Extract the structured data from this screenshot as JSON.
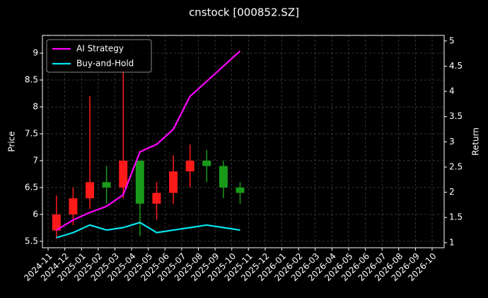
{
  "chart_data": {
    "type": "candlestick_with_returns",
    "title": "cnstock [000852.SZ]",
    "y_label": "Price",
    "y2_label": "Return",
    "x": [
      "2024-11",
      "2024-12",
      "2025-01",
      "2025-02",
      "2025-03",
      "2025-04",
      "2025-05",
      "2025-06",
      "2025-07",
      "2025-08",
      "2025-09",
      "2025-10"
    ],
    "open": [
      5.7,
      6.0,
      6.3,
      6.6,
      6.5,
      7.0,
      6.2,
      6.4,
      6.8,
      7.0,
      6.9,
      6.5
    ],
    "high": [
      6.35,
      6.5,
      8.2,
      6.9,
      8.7,
      7.0,
      6.6,
      7.1,
      7.3,
      7.2,
      7.0,
      6.6
    ],
    "low": [
      5.55,
      5.8,
      6.1,
      6.2,
      6.3,
      5.6,
      5.9,
      6.2,
      6.5,
      6.6,
      6.3,
      6.2
    ],
    "close": [
      6.0,
      6.3,
      6.6,
      6.5,
      7.0,
      6.2,
      6.4,
      6.8,
      7.0,
      6.9,
      6.5,
      6.4
    ],
    "up_color": "#ff1a1a",
    "down_color": "#1a9a1a",
    "series": [
      {
        "name": "AI Strategy",
        "color": "#ff00ff",
        "axis": "y2",
        "values": [
          1.25,
          1.45,
          1.6,
          1.72,
          1.95,
          2.8,
          2.95,
          3.25,
          3.9,
          4.2,
          4.5,
          4.8
        ]
      },
      {
        "name": "Buy-and-Hold",
        "color": "#00e5ee",
        "axis": "y2",
        "values": [
          1.1,
          1.2,
          1.35,
          1.25,
          1.3,
          1.4,
          1.2,
          1.25,
          1.3,
          1.35,
          1.3,
          1.25
        ]
      }
    ],
    "ylim": [
      5.38,
      9.33
    ],
    "yticks": [
      5.5,
      6.0,
      6.5,
      7.0,
      7.5,
      8.0,
      8.5,
      9.0
    ],
    "y2lim": [
      0.9,
      5.11
    ],
    "y2ticks": [
      1.0,
      1.5,
      2.0,
      2.5,
      3.0,
      3.5,
      4.0,
      4.5,
      5.0
    ],
    "xticks": [
      "2024-11",
      "2024-12",
      "2025-01",
      "2025-02",
      "2025-03",
      "2025-04",
      "2025-05",
      "2025-06",
      "2025-07",
      "2025-08",
      "2025-09",
      "2025-10",
      "2025-11",
      "2025-12",
      "2026-01",
      "2026-02",
      "2026-03",
      "2026-04",
      "2026-05",
      "2026-06",
      "2026-07",
      "2026-08",
      "2026-09",
      "2026-10"
    ],
    "grid": true,
    "legend": "upper left"
  }
}
